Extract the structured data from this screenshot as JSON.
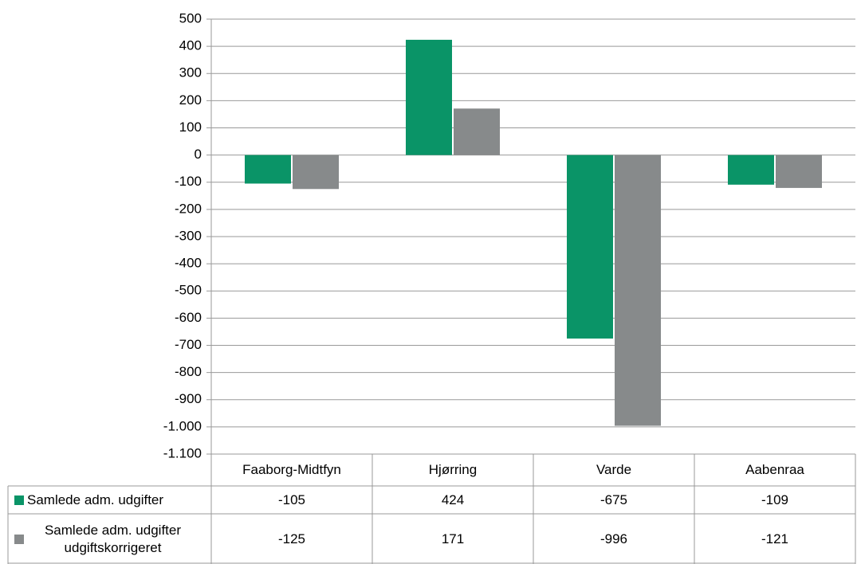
{
  "chart_data": {
    "type": "bar",
    "categories": [
      "Faaborg-Midtfyn",
      "Hjørring",
      "Varde",
      "Aabenraa"
    ],
    "series": [
      {
        "name": "Samlede adm. udgifter",
        "color": "#0a9467",
        "values": [
          -105,
          424,
          -675,
          -109
        ]
      },
      {
        "name": "Samlede adm. udgifter udgiftskorrigeret",
        "color": "#878a8b",
        "values": [
          -125,
          171,
          -996,
          -121
        ]
      }
    ],
    "ylim": [
      -1100,
      500
    ],
    "yticks": [
      500,
      400,
      300,
      200,
      100,
      0,
      -100,
      -200,
      -300,
      -400,
      -500,
      -600,
      -700,
      -800,
      -900,
      {
        "value": -1000,
        "label": "-1.000"
      },
      {
        "value": -1100,
        "label": "-1.100"
      }
    ],
    "grid": true
  }
}
